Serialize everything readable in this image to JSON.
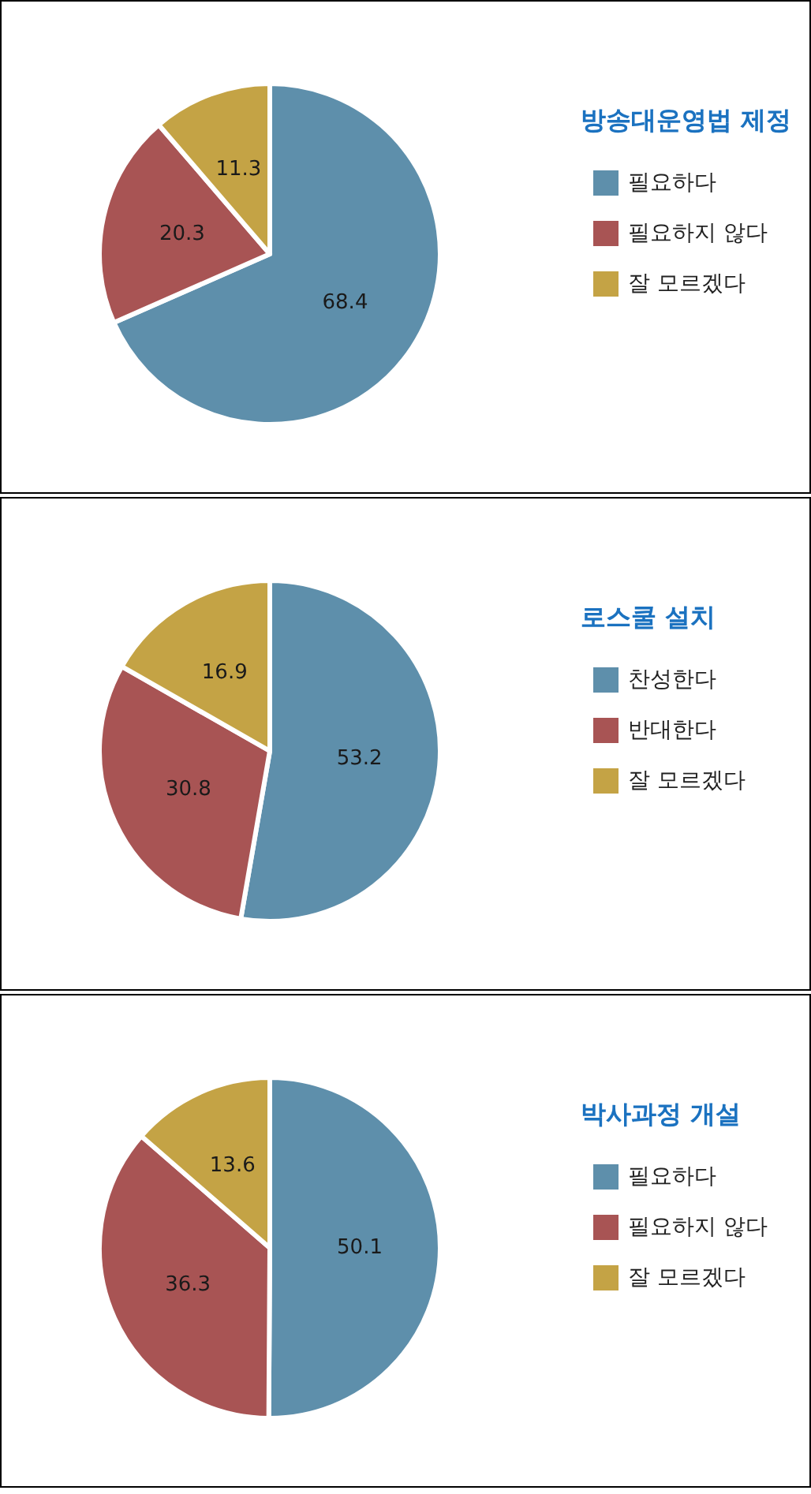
{
  "chart_data": [
    {
      "type": "pie",
      "title": "방송대운영법 제정",
      "categories": [
        "필요하다",
        "필요하지 않다",
        "잘 모르겠다"
      ],
      "values": [
        68.4,
        20.3,
        11.3
      ],
      "colors": [
        "#5e8fab",
        "#a85454",
        "#c4a345"
      ],
      "data_labels": true,
      "legend": "right"
    },
    {
      "type": "pie",
      "title": "로스쿨 설치",
      "categories": [
        "찬성한다",
        "반대한다",
        "잘 모르겠다"
      ],
      "values": [
        53.2,
        30.8,
        16.9
      ],
      "colors": [
        "#5e8fab",
        "#a85454",
        "#c4a345"
      ],
      "data_labels": true,
      "legend": "right"
    },
    {
      "type": "pie",
      "title": "박사과정 개설",
      "categories": [
        "필요하다",
        "필요하지 않다",
        "잘 모르겠다"
      ],
      "values": [
        50.1,
        36.3,
        13.6
      ],
      "colors": [
        "#5e8fab",
        "#a85454",
        "#c4a345"
      ],
      "data_labels": true,
      "legend": "right"
    }
  ]
}
